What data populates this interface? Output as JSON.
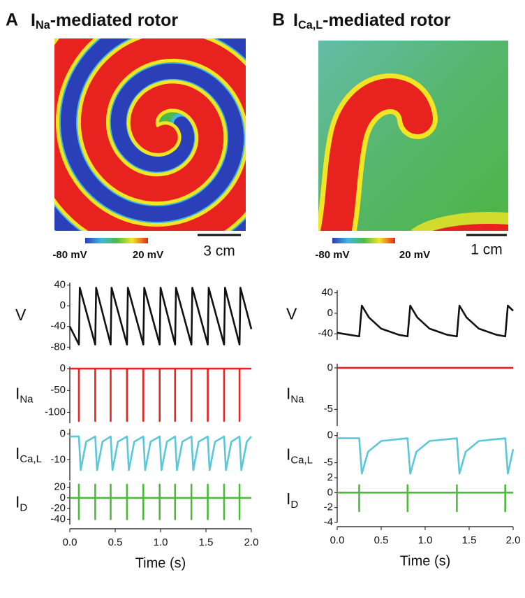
{
  "panels": [
    {
      "letter": "A",
      "title": "I",
      "title_sub": "Na",
      "title_rest": "-mediated rotor",
      "colorbar_min": "-80 mV",
      "colorbar_max": "20 mV",
      "scale_bar": "3 cm"
    },
    {
      "letter": "B",
      "title": "I",
      "title_sub": "Ca,L",
      "title_rest": "-mediated rotor",
      "colorbar_min": "-80 mV",
      "colorbar_max": "20 mV",
      "scale_bar": "1 cm"
    }
  ],
  "chart_data": [
    {
      "type": "line",
      "ylabel": "V",
      "color": "#111111",
      "xlim": [
        0,
        2
      ],
      "ylim": [
        -85,
        45
      ],
      "yticks": [
        40,
        0,
        -40,
        -80
      ],
      "x": [
        0,
        0.1,
        0.11,
        0.28,
        0.29,
        0.45,
        0.46,
        0.63,
        0.64,
        0.81,
        0.82,
        0.99,
        1.0,
        1.16,
        1.17,
        1.34,
        1.35,
        1.52,
        1.53,
        1.7,
        1.71,
        1.87,
        1.88,
        2.0
      ],
      "values": [
        -40,
        -75,
        35,
        -75,
        35,
        -75,
        35,
        -75,
        35,
        -75,
        35,
        -75,
        35,
        -75,
        35,
        -75,
        35,
        -75,
        35,
        -75,
        35,
        -75,
        35,
        -45
      ]
    },
    {
      "type": "line",
      "ylabel": "I",
      "ylabel_sub": "Na",
      "color": "#e8231f",
      "xlim": [
        0,
        2
      ],
      "ylim": [
        -125,
        5
      ],
      "yticks": [
        0,
        -50,
        -100
      ],
      "x": [
        0,
        0.1,
        0.1,
        0.1,
        0.28,
        0.28,
        0.28,
        0.45,
        0.45,
        0.45,
        0.63,
        0.63,
        0.63,
        0.81,
        0.81,
        0.81,
        0.99,
        0.99,
        0.99,
        1.16,
        1.16,
        1.16,
        1.34,
        1.34,
        1.34,
        1.52,
        1.52,
        1.52,
        1.7,
        1.7,
        1.7,
        1.87,
        1.87,
        1.87,
        2.0
      ],
      "values": [
        0,
        0,
        -120,
        0,
        0,
        -120,
        0,
        0,
        -120,
        0,
        0,
        -120,
        0,
        0,
        -120,
        0,
        0,
        -120,
        0,
        0,
        -120,
        0,
        0,
        -120,
        0,
        0,
        -120,
        0,
        0,
        -120,
        0,
        0,
        -120,
        0,
        0
      ]
    },
    {
      "type": "line",
      "ylabel": "I",
      "ylabel_sub": "Ca,L",
      "color": "#5bc8d8",
      "xlim": [
        0,
        2
      ],
      "ylim": [
        -18,
        2
      ],
      "yticks": [
        0,
        -10
      ],
      "x": [
        0,
        0.1,
        0.12,
        0.18,
        0.28,
        0.3,
        0.36,
        0.45,
        0.47,
        0.53,
        0.63,
        0.65,
        0.71,
        0.81,
        0.83,
        0.89,
        0.99,
        1.01,
        1.07,
        1.16,
        1.18,
        1.24,
        1.34,
        1.36,
        1.42,
        1.52,
        1.54,
        1.6,
        1.7,
        1.72,
        1.78,
        1.87,
        1.89,
        1.95,
        2.0
      ],
      "values": [
        -1,
        -1,
        -14,
        -3,
        -1,
        -14,
        -3,
        -1,
        -14,
        -3,
        -1,
        -14,
        -3,
        -1,
        -14,
        -3,
        -1,
        -14,
        -3,
        -1,
        -14,
        -3,
        -1,
        -14,
        -3,
        -1,
        -14,
        -3,
        -1,
        -14,
        -3,
        -1,
        -14,
        -3,
        -1
      ]
    },
    {
      "type": "line",
      "ylabel": "I",
      "ylabel_sub": "D",
      "color": "#4cbb3a",
      "xlim": [
        0,
        2
      ],
      "ylim": [
        -50,
        30
      ],
      "yticks": [
        20,
        0,
        -20,
        -40
      ],
      "x": [
        0,
        0.1,
        0.1,
        0.1,
        0.1,
        0.28,
        0.28,
        0.28,
        0.28,
        0.45,
        0.45,
        0.45,
        0.45,
        0.63,
        0.63,
        0.63,
        0.63,
        0.81,
        0.81,
        0.81,
        0.81,
        0.99,
        0.99,
        0.99,
        0.99,
        1.16,
        1.16,
        1.16,
        1.16,
        1.34,
        1.34,
        1.34,
        1.34,
        1.52,
        1.52,
        1.52,
        1.52,
        1.7,
        1.7,
        1.7,
        1.7,
        1.87,
        1.87,
        1.87,
        1.87,
        2.0
      ],
      "values": [
        0,
        0,
        25,
        -40,
        0,
        0,
        25,
        -40,
        0,
        0,
        25,
        -40,
        0,
        0,
        25,
        -40,
        0,
        0,
        25,
        -40,
        0,
        0,
        25,
        -40,
        0,
        0,
        25,
        -40,
        0,
        0,
        25,
        -40,
        0,
        0,
        25,
        -40,
        0,
        0,
        25,
        -40,
        0,
        0,
        25,
        -40,
        0,
        0
      ],
      "xticks": [
        {
          "value": 0,
          "label": "0.0"
        },
        0.5,
        {
          "value": 1,
          "label": "1.0"
        },
        1.5,
        {
          "value": 2,
          "label": "2.0"
        }
      ],
      "xlabel": "Time (s)"
    },
    {
      "type": "line",
      "ylabel": "V",
      "color": "#111111",
      "xlim": [
        0,
        2
      ],
      "ylim": [
        -52,
        45
      ],
      "yticks": [
        40,
        0,
        -40
      ],
      "x": [
        0,
        0.25,
        0.28,
        0.36,
        0.5,
        0.7,
        0.8,
        0.83,
        0.91,
        1.05,
        1.25,
        1.36,
        1.39,
        1.47,
        1.61,
        1.81,
        1.91,
        1.94,
        2.0
      ],
      "values": [
        -38,
        -45,
        15,
        -8,
        -30,
        -42,
        -45,
        15,
        -8,
        -30,
        -42,
        -45,
        15,
        -8,
        -30,
        -42,
        -45,
        15,
        5
      ]
    },
    {
      "type": "line",
      "ylabel": "I",
      "ylabel_sub": "Na",
      "color": "#e8231f",
      "xlim": [
        0,
        2
      ],
      "ylim": [
        -7,
        0.5
      ],
      "yticks": [
        0,
        -5
      ],
      "x": [
        0,
        2.0
      ],
      "values": [
        0,
        0
      ]
    },
    {
      "type": "line",
      "ylabel": "I",
      "ylabel_sub": "Ca,L",
      "color": "#5bc8d8",
      "xlim": [
        0,
        2
      ],
      "ylim": [
        -8,
        0.6
      ],
      "yticks": [
        0,
        -5
      ],
      "x": [
        0,
        0.25,
        0.28,
        0.35,
        0.5,
        0.8,
        0.83,
        0.9,
        1.05,
        1.36,
        1.39,
        1.46,
        1.61,
        1.91,
        1.94,
        2.0
      ],
      "values": [
        -0.5,
        -0.5,
        -7,
        -3,
        -1,
        -0.5,
        -7,
        -3,
        -1,
        -0.5,
        -7,
        -3,
        -1,
        -0.5,
        -7,
        -2.5
      ]
    },
    {
      "type": "line",
      "ylabel": "I",
      "ylabel_sub": "D",
      "color": "#4cbb3a",
      "xlim": [
        0,
        2
      ],
      "ylim": [
        -4,
        2
      ],
      "yticks": [
        2,
        0,
        -2,
        -4
      ],
      "x": [
        0,
        0.25,
        0.25,
        0.25,
        0.25,
        0.8,
        0.8,
        0.8,
        0.8,
        1.36,
        1.36,
        1.36,
        1.36,
        1.91,
        1.91,
        1.91,
        1.91,
        2.0
      ],
      "values": [
        0,
        0,
        1,
        -2.5,
        0,
        0,
        1,
        -2.5,
        0,
        0,
        1,
        -2.5,
        0,
        0,
        1,
        -2.5,
        0,
        0
      ],
      "xticks": [
        {
          "value": 0,
          "label": "0.0"
        },
        0.5,
        {
          "value": 1,
          "label": "1.0"
        },
        1.5,
        {
          "value": 2,
          "label": "2.0"
        }
      ],
      "xlabel": "Time (s)"
    }
  ]
}
